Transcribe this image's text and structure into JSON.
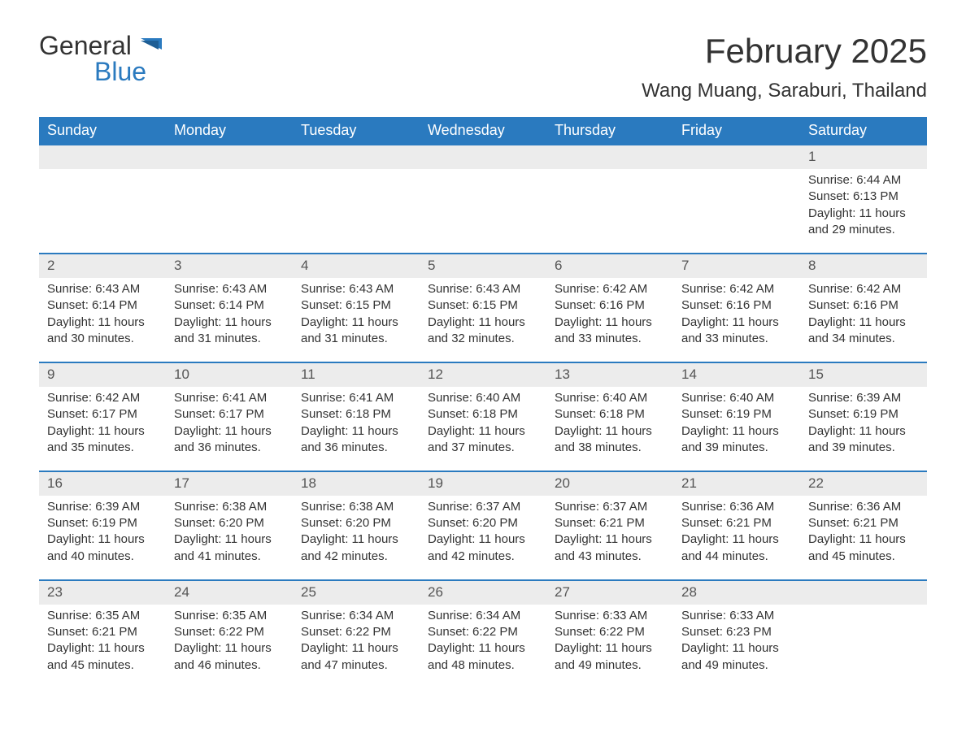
{
  "logo": {
    "text1": "General",
    "text2": "Blue"
  },
  "title": "February 2025",
  "location": "Wang Muang, Saraburi, Thailand",
  "colors": {
    "header_bg": "#2a7abf",
    "header_text": "#ffffff",
    "daynum_bg": "#ececec",
    "daynum_border": "#2a7abf",
    "body_text": "#333333",
    "page_bg": "#ffffff"
  },
  "layout": {
    "columns": 7,
    "first_day_column": 6
  },
  "weekdays": [
    "Sunday",
    "Monday",
    "Tuesday",
    "Wednesday",
    "Thursday",
    "Friday",
    "Saturday"
  ],
  "days": [
    {
      "n": "1",
      "sunrise": "6:44 AM",
      "sunset": "6:13 PM",
      "daylight": "11 hours and 29 minutes."
    },
    {
      "n": "2",
      "sunrise": "6:43 AM",
      "sunset": "6:14 PM",
      "daylight": "11 hours and 30 minutes."
    },
    {
      "n": "3",
      "sunrise": "6:43 AM",
      "sunset": "6:14 PM",
      "daylight": "11 hours and 31 minutes."
    },
    {
      "n": "4",
      "sunrise": "6:43 AM",
      "sunset": "6:15 PM",
      "daylight": "11 hours and 31 minutes."
    },
    {
      "n": "5",
      "sunrise": "6:43 AM",
      "sunset": "6:15 PM",
      "daylight": "11 hours and 32 minutes."
    },
    {
      "n": "6",
      "sunrise": "6:42 AM",
      "sunset": "6:16 PM",
      "daylight": "11 hours and 33 minutes."
    },
    {
      "n": "7",
      "sunrise": "6:42 AM",
      "sunset": "6:16 PM",
      "daylight": "11 hours and 33 minutes."
    },
    {
      "n": "8",
      "sunrise": "6:42 AM",
      "sunset": "6:16 PM",
      "daylight": "11 hours and 34 minutes."
    },
    {
      "n": "9",
      "sunrise": "6:42 AM",
      "sunset": "6:17 PM",
      "daylight": "11 hours and 35 minutes."
    },
    {
      "n": "10",
      "sunrise": "6:41 AM",
      "sunset": "6:17 PM",
      "daylight": "11 hours and 36 minutes."
    },
    {
      "n": "11",
      "sunrise": "6:41 AM",
      "sunset": "6:18 PM",
      "daylight": "11 hours and 36 minutes."
    },
    {
      "n": "12",
      "sunrise": "6:40 AM",
      "sunset": "6:18 PM",
      "daylight": "11 hours and 37 minutes."
    },
    {
      "n": "13",
      "sunrise": "6:40 AM",
      "sunset": "6:18 PM",
      "daylight": "11 hours and 38 minutes."
    },
    {
      "n": "14",
      "sunrise": "6:40 AM",
      "sunset": "6:19 PM",
      "daylight": "11 hours and 39 minutes."
    },
    {
      "n": "15",
      "sunrise": "6:39 AM",
      "sunset": "6:19 PM",
      "daylight": "11 hours and 39 minutes."
    },
    {
      "n": "16",
      "sunrise": "6:39 AM",
      "sunset": "6:19 PM",
      "daylight": "11 hours and 40 minutes."
    },
    {
      "n": "17",
      "sunrise": "6:38 AM",
      "sunset": "6:20 PM",
      "daylight": "11 hours and 41 minutes."
    },
    {
      "n": "18",
      "sunrise": "6:38 AM",
      "sunset": "6:20 PM",
      "daylight": "11 hours and 42 minutes."
    },
    {
      "n": "19",
      "sunrise": "6:37 AM",
      "sunset": "6:20 PM",
      "daylight": "11 hours and 42 minutes."
    },
    {
      "n": "20",
      "sunrise": "6:37 AM",
      "sunset": "6:21 PM",
      "daylight": "11 hours and 43 minutes."
    },
    {
      "n": "21",
      "sunrise": "6:36 AM",
      "sunset": "6:21 PM",
      "daylight": "11 hours and 44 minutes."
    },
    {
      "n": "22",
      "sunrise": "6:36 AM",
      "sunset": "6:21 PM",
      "daylight": "11 hours and 45 minutes."
    },
    {
      "n": "23",
      "sunrise": "6:35 AM",
      "sunset": "6:21 PM",
      "daylight": "11 hours and 45 minutes."
    },
    {
      "n": "24",
      "sunrise": "6:35 AM",
      "sunset": "6:22 PM",
      "daylight": "11 hours and 46 minutes."
    },
    {
      "n": "25",
      "sunrise": "6:34 AM",
      "sunset": "6:22 PM",
      "daylight": "11 hours and 47 minutes."
    },
    {
      "n": "26",
      "sunrise": "6:34 AM",
      "sunset": "6:22 PM",
      "daylight": "11 hours and 48 minutes."
    },
    {
      "n": "27",
      "sunrise": "6:33 AM",
      "sunset": "6:22 PM",
      "daylight": "11 hours and 49 minutes."
    },
    {
      "n": "28",
      "sunrise": "6:33 AM",
      "sunset": "6:23 PM",
      "daylight": "11 hours and 49 minutes."
    }
  ],
  "labels": {
    "sunrise": "Sunrise: ",
    "sunset": "Sunset: ",
    "daylight": "Daylight: "
  }
}
